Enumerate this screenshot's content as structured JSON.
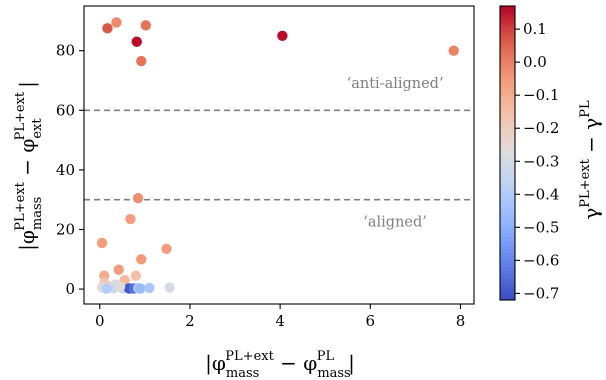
{
  "chart_data": {
    "type": "scatter",
    "xlabel": "|φ_mass^PL+ext − φ_mass^PL|",
    "ylabel": "|φ_mass^PL+ext − φ_ext^PL+ext|",
    "colorbar_label": "γ^PL+ext − γ^PL",
    "xlim": [
      -0.35,
      8.3
    ],
    "ylim": [
      -5,
      95
    ],
    "xticks": [
      0,
      2,
      4,
      6,
      8
    ],
    "yticks": [
      0,
      20,
      40,
      60,
      80
    ],
    "colorbar": {
      "vmin": -0.72,
      "vmax": 0.17,
      "ticks": [
        0.1,
        0.0,
        -0.1,
        -0.2,
        -0.3,
        -0.4,
        -0.5,
        -0.6,
        -0.7
      ],
      "tick_labels": [
        "0.1",
        "0.0",
        "−0.1",
        "−0.2",
        "−0.3",
        "−0.4",
        "−0.5",
        "−0.6",
        "−0.7"
      ],
      "colormap": "coolwarm"
    },
    "reference_lines": [
      {
        "y": 60,
        "style": "dashed",
        "color": "#808080"
      },
      {
        "y": 30,
        "style": "dashed",
        "color": "#808080"
      }
    ],
    "annotations": [
      {
        "text": "‘anti-aligned’",
        "x": 6.55,
        "y": 67.5
      },
      {
        "text": "‘aligned’",
        "x": 6.55,
        "y": 21
      }
    ],
    "points": [
      {
        "x": 0.17,
        "y": 87.5,
        "c": 0.07
      },
      {
        "x": 0.37,
        "y": 89.5,
        "c": -0.02
      },
      {
        "x": 0.82,
        "y": 83.0,
        "c": 0.16
      },
      {
        "x": 0.92,
        "y": 76.5,
        "c": 0.02
      },
      {
        "x": 1.02,
        "y": 88.5,
        "c": 0.02
      },
      {
        "x": 4.05,
        "y": 85.0,
        "c": 0.16
      },
      {
        "x": 7.85,
        "y": 80.0,
        "c": -0.01
      },
      {
        "x": 0.85,
        "y": 30.5,
        "c": -0.03
      },
      {
        "x": 0.68,
        "y": 23.5,
        "c": -0.06
      },
      {
        "x": 0.05,
        "y": 15.5,
        "c": -0.06
      },
      {
        "x": 1.48,
        "y": 13.5,
        "c": -0.06
      },
      {
        "x": 0.92,
        "y": 10.0,
        "c": -0.05
      },
      {
        "x": 0.42,
        "y": 6.5,
        "c": -0.06
      },
      {
        "x": 0.1,
        "y": 4.5,
        "c": -0.1
      },
      {
        "x": 0.8,
        "y": 4.5,
        "c": -0.15
      },
      {
        "x": 0.55,
        "y": 3.0,
        "c": -0.13
      },
      {
        "x": 0.1,
        "y": 2.0,
        "c": -0.18
      },
      {
        "x": 0.35,
        "y": 1.5,
        "c": -0.3
      },
      {
        "x": 0.2,
        "y": 1.0,
        "c": -0.22
      },
      {
        "x": 0.05,
        "y": 0.5,
        "c": -0.26
      },
      {
        "x": 0.3,
        "y": 0.3,
        "c": -0.33
      },
      {
        "x": 0.5,
        "y": 0.3,
        "c": -0.36
      },
      {
        "x": 0.65,
        "y": 0.2,
        "c": -0.7
      },
      {
        "x": 0.75,
        "y": 0.2,
        "c": -0.65
      },
      {
        "x": 0.85,
        "y": 0.3,
        "c": -0.42
      },
      {
        "x": 0.9,
        "y": 0.2,
        "c": -0.46
      },
      {
        "x": 1.1,
        "y": 0.4,
        "c": -0.42
      },
      {
        "x": 1.55,
        "y": 0.5,
        "c": -0.3
      },
      {
        "x": 0.15,
        "y": 0.1,
        "c": -0.4
      },
      {
        "x": 0.45,
        "y": 0.8,
        "c": -0.27
      }
    ]
  }
}
